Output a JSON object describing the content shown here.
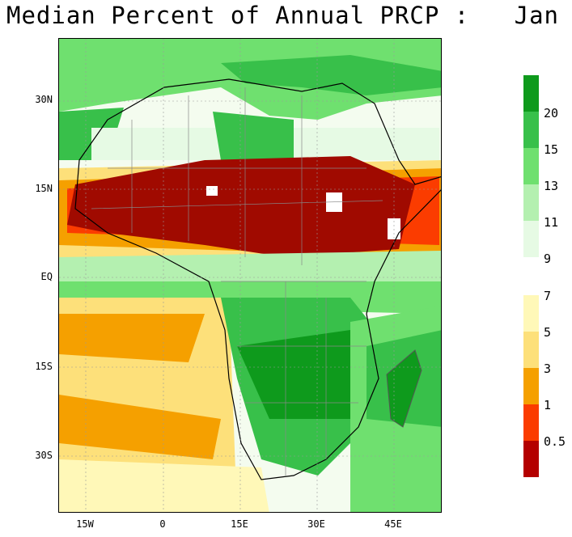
{
  "title": "Median Percent of Annual PRCP :   Jan",
  "lat_labels": [
    "30N",
    "15N",
    "EQ",
    "15S",
    "30S"
  ],
  "lon_labels": [
    "15W",
    "0",
    "15E",
    "30E",
    "45E"
  ],
  "colorbar": {
    "upper": {
      "labels": [
        "20",
        "15",
        "13",
        "11",
        "9"
      ],
      "colors": [
        "#0e9a1c",
        "#38c04a",
        "#6fe06f",
        "#b4f0b0",
        "#e6fae4"
      ]
    },
    "lower": {
      "labels": [
        "7",
        "5",
        "3",
        "1",
        "0.5"
      ],
      "colors": [
        "#fff8b8",
        "#fde07a",
        "#f5a000",
        "#fb3c00",
        "#b40000"
      ]
    }
  },
  "colors": {
    "ocean_light": "#eefbe9",
    "land_green": "#2aa83a",
    "dry_red": "#a00a00",
    "white": "#ffffff"
  }
}
